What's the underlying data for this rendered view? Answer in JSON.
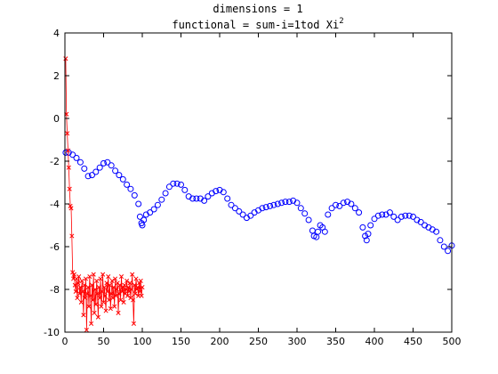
{
  "chart_data": {
    "type": "line",
    "title_line1": "dimensions = 1",
    "title_line2_base": "functional = sum-i=1tod Xi",
    "title_line2_sup": "2",
    "xlim": [
      0,
      500
    ],
    "ylim": [
      -10,
      4
    ],
    "xticks": [
      0,
      50,
      100,
      150,
      200,
      250,
      300,
      350,
      400,
      450,
      500
    ],
    "yticks": [
      4,
      2,
      0,
      -2,
      -4,
      -6,
      -8,
      -10
    ],
    "grid": false,
    "series": [
      {
        "marker": "circle",
        "color": "#0000ff",
        "x": [
          1,
          5,
          10,
          15,
          20,
          25,
          30,
          35,
          40,
          45,
          50,
          55,
          60,
          65,
          70,
          75,
          80,
          85,
          90,
          95,
          97,
          99,
          100,
          102,
          105,
          110,
          115,
          120,
          125,
          130,
          135,
          140,
          145,
          150,
          155,
          160,
          165,
          170,
          175,
          180,
          185,
          190,
          195,
          200,
          205,
          210,
          215,
          220,
          225,
          230,
          235,
          240,
          245,
          250,
          255,
          260,
          265,
          270,
          275,
          280,
          285,
          290,
          295,
          300,
          305,
          310,
          315,
          320,
          322,
          325,
          327,
          330,
          333,
          336,
          340,
          345,
          350,
          355,
          360,
          365,
          370,
          375,
          380,
          385,
          388,
          390,
          392,
          395,
          400,
          405,
          410,
          415,
          420,
          425,
          430,
          435,
          440,
          445,
          450,
          455,
          460,
          465,
          470,
          475,
          480,
          485,
          490,
          495,
          500
        ],
        "y": [
          -1.6,
          -1.6,
          -1.7,
          -1.85,
          -2.05,
          -2.35,
          -2.7,
          -2.65,
          -2.5,
          -2.3,
          -2.1,
          -2.05,
          -2.2,
          -2.45,
          -2.65,
          -2.85,
          -3.1,
          -3.3,
          -3.6,
          -4.0,
          -4.6,
          -4.9,
          -5.0,
          -4.75,
          -4.5,
          -4.4,
          -4.25,
          -4.05,
          -3.8,
          -3.5,
          -3.2,
          -3.05,
          -3.05,
          -3.1,
          -3.35,
          -3.65,
          -3.75,
          -3.75,
          -3.75,
          -3.85,
          -3.65,
          -3.5,
          -3.4,
          -3.35,
          -3.45,
          -3.75,
          -4.05,
          -4.2,
          -4.35,
          -4.5,
          -4.65,
          -4.55,
          -4.4,
          -4.3,
          -4.2,
          -4.15,
          -4.1,
          -4.05,
          -4.0,
          -3.95,
          -3.9,
          -3.9,
          -3.85,
          -3.95,
          -4.2,
          -4.45,
          -4.75,
          -5.25,
          -5.5,
          -5.55,
          -5.3,
          -5.0,
          -5.1,
          -5.3,
          -4.5,
          -4.2,
          -4.05,
          -4.1,
          -3.95,
          -3.9,
          -4.0,
          -4.2,
          -4.4,
          -5.1,
          -5.5,
          -5.7,
          -5.4,
          -5.0,
          -4.7,
          -4.55,
          -4.5,
          -4.5,
          -4.4,
          -4.6,
          -4.75,
          -4.6,
          -4.55,
          -4.55,
          -4.6,
          -4.75,
          -4.85,
          -5.0,
          -5.1,
          -5.2,
          -5.3,
          -5.7,
          -6.0,
          -6.2,
          -5.95
        ]
      },
      {
        "marker": "x",
        "color": "#ff0000",
        "x": [
          1,
          2,
          3,
          4,
          5,
          6,
          7,
          8,
          9,
          10,
          11,
          12,
          13,
          14,
          15,
          16,
          17,
          18,
          19,
          20,
          21,
          22,
          23,
          24,
          25,
          26,
          27,
          28,
          29,
          30,
          31,
          32,
          33,
          34,
          35,
          36,
          37,
          38,
          39,
          40,
          41,
          42,
          43,
          44,
          45,
          46,
          47,
          48,
          49,
          50,
          51,
          52,
          53,
          54,
          55,
          56,
          57,
          58,
          59,
          60,
          61,
          62,
          63,
          64,
          65,
          66,
          67,
          68,
          69,
          70,
          71,
          72,
          73,
          74,
          75,
          76,
          77,
          78,
          79,
          80,
          81,
          82,
          83,
          84,
          85,
          86,
          87,
          88,
          89,
          90,
          91,
          92,
          93,
          94,
          95,
          96,
          97,
          98,
          99,
          100
        ],
        "y": [
          2.8,
          0.2,
          -0.7,
          -1.5,
          -2.3,
          -3.3,
          -4.1,
          -4.2,
          -5.5,
          -7.2,
          -7.5,
          -7.3,
          -7.8,
          -8.1,
          -7.5,
          -8.4,
          -7.7,
          -7.4,
          -8.2,
          -7.9,
          -8.6,
          -7.6,
          -8.1,
          -9.2,
          -7.8,
          -8.4,
          -7.5,
          -9.9,
          -8.2,
          -7.9,
          -8.8,
          -7.4,
          -8.3,
          -9.6,
          -7.8,
          -8.5,
          -7.3,
          -9.1,
          -8.0,
          -8.7,
          -7.6,
          -8.2,
          -9.3,
          -7.9,
          -8.4,
          -7.5,
          -8.8,
          -8.1,
          -7.3,
          -8.6,
          -7.9,
          -8.3,
          -9.0,
          -7.7,
          -8.1,
          -7.4,
          -8.5,
          -7.8,
          -8.9,
          -8.2,
          -7.6,
          -8.4,
          -7.9,
          -8.8,
          -7.5,
          -8.3,
          -8.0,
          -7.7,
          -9.1,
          -8.2,
          -7.8,
          -8.5,
          -7.4,
          -8.1,
          -7.9,
          -8.6,
          -7.8,
          -8.2,
          -8.0,
          -7.6,
          -8.3,
          -7.9,
          -8.1,
          -7.7,
          -8.4,
          -8.0,
          -7.3,
          -8.5,
          -9.6,
          -7.8,
          -8.2,
          -7.5,
          -8.0,
          -7.9,
          -8.3,
          -7.7,
          -8.1,
          -7.6,
          -8.3,
          -7.9
        ]
      }
    ]
  }
}
